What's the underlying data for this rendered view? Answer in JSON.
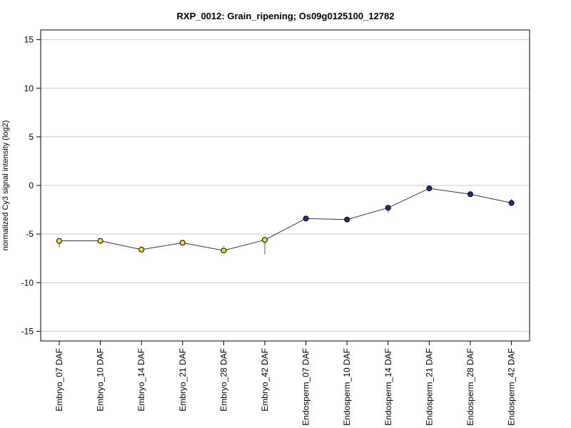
{
  "chart_data": {
    "type": "line",
    "title": "RXP_0012: Grain_ripening; Os09g0125100_12782",
    "ylabel": "normalized Cy3 signal intensity (log2)",
    "xlabel": "",
    "ylim": [
      -16,
      16
    ],
    "yticks": [
      15,
      10,
      5,
      0,
      -5,
      -10,
      -15
    ],
    "grid": true,
    "categories": [
      "Embryo_07 DAF",
      "Embryo_10 DAF",
      "Embryo_14 DAF",
      "Embryo_21 DAF",
      "Embryo_28 DAF",
      "Embryo_42 DAF",
      "Endosperm_07 DAF",
      "Endosperm_10 DAF",
      "Endosperm_14 DAF",
      "Endosperm_21 DAF",
      "Endosperm_28 DAF",
      "Endosperm_42 DAF"
    ],
    "values": [
      -5.7,
      -5.7,
      -6.6,
      -5.9,
      -6.7,
      -5.6,
      -3.4,
      -3.5,
      -2.3,
      -0.3,
      -0.9,
      -1.8
    ],
    "error_low": [
      -6.4,
      -6.0,
      -6.8,
      -6.1,
      -6.2,
      -7.1,
      -3.5,
      -3.8,
      -2.8,
      -0.4,
      -1.0,
      -2.1
    ],
    "error_high": [
      -5.5,
      -5.5,
      -6.5,
      -5.7,
      -6.3,
      -5.4,
      -3.3,
      -3.3,
      -2.1,
      -0.2,
      -0.8,
      -1.4
    ],
    "point_colors": [
      "#f2de2a",
      "#f2de2a",
      "#f2de2a",
      "#f2de2a",
      "#f2de2a",
      "#f2de2a",
      "#1a2f99",
      "#1a2f99",
      "#1a2f99",
      "#1a2f99",
      "#1a2f99",
      "#1a2f99"
    ],
    "line_color": "#333333",
    "grid_color": "#c8c8c8"
  }
}
